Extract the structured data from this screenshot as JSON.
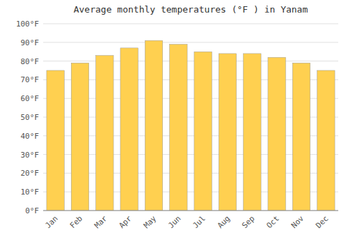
{
  "chart_data": {
    "type": "bar",
    "title": "Average monthly temperatures (°F ) in Yanam",
    "categories": [
      "Jan",
      "Feb",
      "Mar",
      "Apr",
      "May",
      "Jun",
      "Jul",
      "Aug",
      "Sep",
      "Oct",
      "Nov",
      "Dec"
    ],
    "values": [
      75,
      79,
      83,
      87,
      91,
      89,
      85,
      84,
      84,
      82,
      79,
      75
    ],
    "color": "#FFD050",
    "ylim": [
      0,
      100
    ],
    "yticks": [
      {
        "value": 0,
        "label": "0°F"
      },
      {
        "value": 10,
        "label": "10°F"
      },
      {
        "value": 20,
        "label": "20°F"
      },
      {
        "value": 30,
        "label": "30°F"
      },
      {
        "value": 40,
        "label": "40°F"
      },
      {
        "value": 50,
        "label": "50°F"
      },
      {
        "value": 60,
        "label": "60°F"
      },
      {
        "value": 70,
        "label": "70°F"
      },
      {
        "value": 80,
        "label": "80°F"
      },
      {
        "value": 90,
        "label": "90°F"
      },
      {
        "value": 100,
        "label": "100°F"
      }
    ],
    "grid": true
  }
}
